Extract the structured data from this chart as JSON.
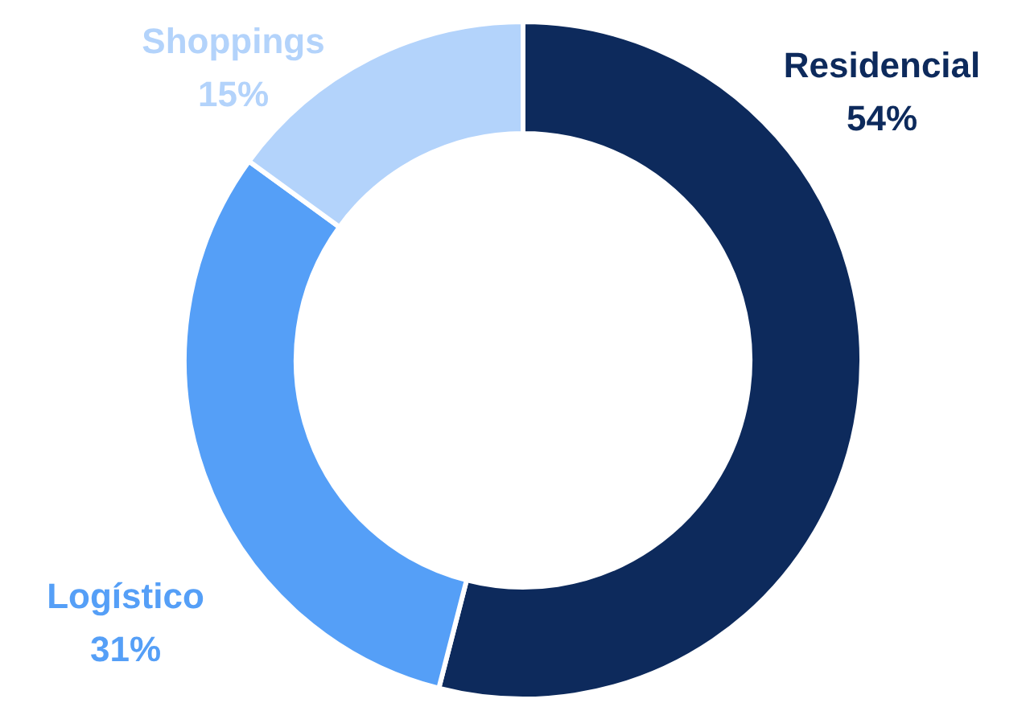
{
  "chart_data": {
    "type": "donut",
    "categories": [
      "Residencial",
      "Logístico",
      "Shoppings"
    ],
    "values": [
      54,
      31,
      15
    ],
    "colors": [
      "#0d2a5c",
      "#559ff7",
      "#b3d3fb"
    ],
    "value_labels": [
      "54%",
      "31%",
      "15%"
    ]
  }
}
